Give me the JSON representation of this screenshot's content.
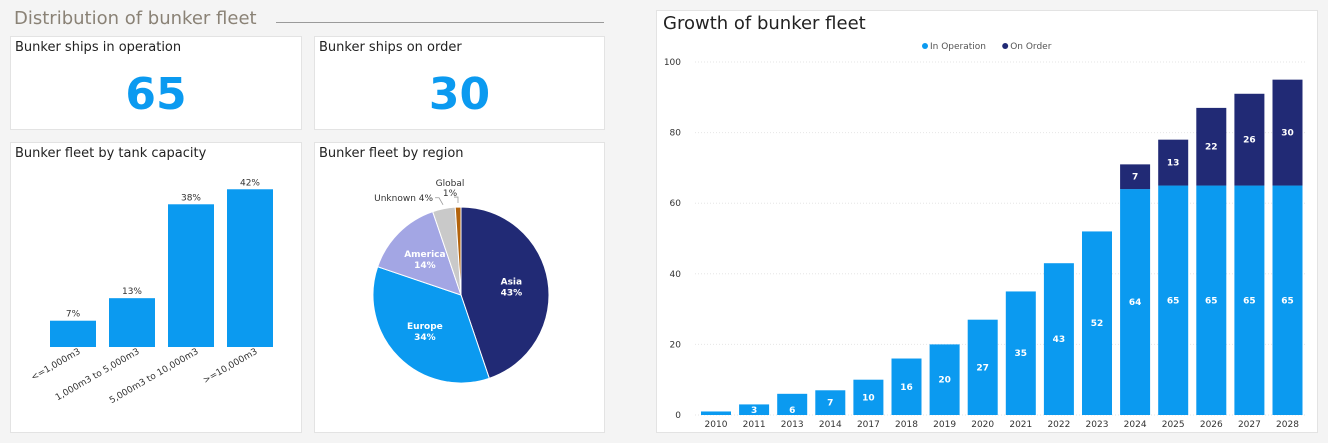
{
  "header": {
    "title": "Distribution of bunker fleet"
  },
  "kpis": {
    "in_operation": {
      "label": "Bunker ships in operation",
      "value": "65"
    },
    "on_order": {
      "label": "Bunker ships on order",
      "value": "30"
    }
  },
  "colors": {
    "in_operation": "#0b9af0",
    "on_order": "#212a75",
    "america": "#a3a6e4",
    "unknown": "#c9c9c9",
    "global": "#b3630c"
  },
  "chart_data": [
    {
      "type": "bar",
      "title": "Bunker fleet by tank capacity",
      "categories": [
        "<=1,000m3",
        "1,000m3 to 5,000m3",
        "5,000m3 to 10,000m3",
        ">=10,000m3"
      ],
      "values": [
        7,
        13,
        38,
        42
      ],
      "labels": [
        "7%",
        "13%",
        "38%",
        "42%"
      ],
      "ylim": [
        0,
        45
      ],
      "grid": false
    },
    {
      "type": "pie",
      "title": "Bunker fleet by region",
      "slices": [
        {
          "name": "Asia",
          "value": 43,
          "pct_label": "43%"
        },
        {
          "name": "Europe",
          "value": 34,
          "pct_label": "34%"
        },
        {
          "name": "America",
          "value": 14,
          "pct_label": "14%"
        },
        {
          "name": "Unknown",
          "value": 4,
          "pct_label": "4%"
        },
        {
          "name": "Global",
          "value": 1,
          "pct_label": "1%"
        }
      ]
    },
    {
      "type": "bar",
      "stacked": true,
      "title": "Growth of bunker fleet",
      "categories": [
        "2010",
        "2011",
        "2013",
        "2014",
        "2017",
        "2018",
        "2019",
        "2020",
        "2021",
        "2022",
        "2023",
        "2024",
        "2025",
        "2026",
        "2027",
        "2028"
      ],
      "series": [
        {
          "name": "In Operation",
          "values": [
            1,
            3,
            6,
            7,
            10,
            16,
            20,
            27,
            35,
            43,
            52,
            64,
            65,
            65,
            65,
            65
          ]
        },
        {
          "name": "On Order",
          "values": [
            0,
            0,
            0,
            0,
            0,
            0,
            0,
            0,
            0,
            0,
            0,
            7,
            13,
            22,
            26,
            30
          ]
        }
      ],
      "yticks": [
        0,
        20,
        40,
        60,
        80,
        100
      ],
      "ylim": [
        0,
        100
      ],
      "legend": "top-center",
      "grid": true
    }
  ]
}
